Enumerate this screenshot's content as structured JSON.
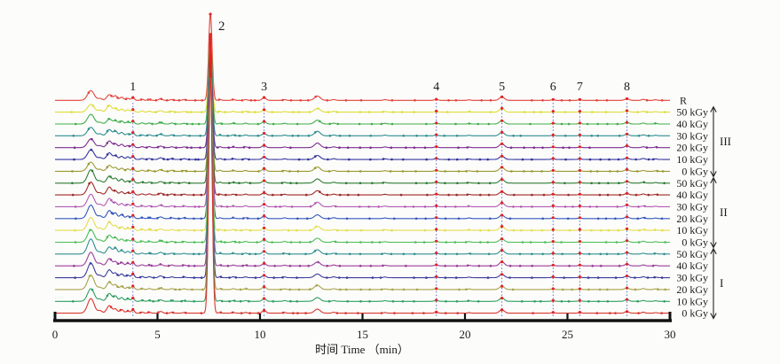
{
  "chart_data": {
    "type": "line",
    "kind": "stacked-chromatograms",
    "title": "",
    "xlabel": "时间 Time （min）",
    "ylabel": "",
    "xlim": [
      0,
      30
    ],
    "xticks": [
      0,
      5,
      10,
      15,
      20,
      25,
      30
    ],
    "grid": false,
    "legend_position": "right",
    "numbered_peaks": [
      {
        "label": "1",
        "x_min": 3.8
      },
      {
        "label": "2",
        "x_min": 7.58
      },
      {
        "label": "3",
        "x_min": 10.2
      },
      {
        "label": "4",
        "x_min": 18.6
      },
      {
        "label": "5",
        "x_min": 21.8
      },
      {
        "label": "6",
        "x_min": 24.3
      },
      {
        "label": "7",
        "x_min": 25.6
      },
      {
        "label": "8",
        "x_min": 27.9
      }
    ],
    "guide_lines_x_min": [
      3.8,
      10.2,
      18.6,
      21.8,
      24.3,
      25.6,
      27.9
    ],
    "unlabeled_features_x_min": [
      1.75,
      2.65,
      2.95,
      3.25,
      12.8
    ],
    "groups": [
      {
        "name": "III",
        "doses": [
          "50 kGy",
          "40 kGy",
          "30 kGy",
          "20 kGy",
          "10 kGy",
          "0 kGy"
        ]
      },
      {
        "name": "II",
        "doses": [
          "50 kGy",
          "40 kGy",
          "30 kGy",
          "20 kGy",
          "10 kGy",
          "0 kGy"
        ]
      },
      {
        "name": "I",
        "doses": [
          "50 kGy",
          "40 kGy",
          "30 kGy",
          "20 kGy",
          "10 kGy",
          "0 kGy"
        ]
      }
    ],
    "traces": [
      {
        "label": "R",
        "group": "reference",
        "color": "#e2433b"
      },
      {
        "label": "50 kGy",
        "group": "III",
        "color": "#dfdd3a"
      },
      {
        "label": "40 kGy",
        "group": "III",
        "color": "#3fae49"
      },
      {
        "label": "30 kGy",
        "group": "III",
        "color": "#2e8e8e"
      },
      {
        "label": "20 kGy",
        "group": "III",
        "color": "#7c2f90"
      },
      {
        "label": "10 kGy",
        "group": "III",
        "color": "#32329c"
      },
      {
        "label": "0 kGy",
        "group": "III",
        "color": "#9a9a30"
      },
      {
        "label": "50 kGy",
        "group": "II",
        "color": "#2e7d33"
      },
      {
        "label": "40 kGy",
        "group": "II",
        "color": "#9e2a26"
      },
      {
        "label": "30 kGy",
        "group": "II",
        "color": "#b35bb3"
      },
      {
        "label": "20 kGy",
        "group": "II",
        "color": "#3657b9"
      },
      {
        "label": "10 kGy",
        "group": "II",
        "color": "#e4dd4e"
      },
      {
        "label": "0 kGy",
        "group": "II",
        "color": "#4cbd55"
      },
      {
        "label": "50 kGy",
        "group": "I",
        "color": "#2e8f90"
      },
      {
        "label": "40 kGy",
        "group": "I",
        "color": "#993d99"
      },
      {
        "label": "30 kGy",
        "group": "I",
        "color": "#3c3c9b"
      },
      {
        "label": "20 kGy",
        "group": "I",
        "color": "#a7a249"
      },
      {
        "label": "10 kGy",
        "group": "I",
        "color": "#2f9e61"
      },
      {
        "label": "0 kGy",
        "group": "I",
        "color": "#d8372e"
      }
    ],
    "base_peaks": [
      [
        1.75,
        10.0,
        0.16
      ],
      [
        2.2,
        2.0,
        0.1
      ],
      [
        2.65,
        7.0,
        0.12
      ],
      [
        2.95,
        4.5,
        0.09
      ],
      [
        3.25,
        3.5,
        0.09
      ],
      [
        3.55,
        2.5,
        0.08
      ],
      [
        3.8,
        3.2,
        0.07
      ],
      [
        4.25,
        1.2,
        0.07
      ],
      [
        4.6,
        1.1,
        0.07
      ],
      [
        5.15,
        1.8,
        0.09
      ],
      [
        5.7,
        1.0,
        0.07
      ],
      [
        6.3,
        0.8,
        0.07
      ],
      [
        8.05,
        1.0,
        0.06
      ],
      [
        8.7,
        0.9,
        0.07
      ],
      [
        9.3,
        0.9,
        0.07
      ],
      [
        10.2,
        2.8,
        0.09
      ],
      [
        11.2,
        0.8,
        0.07
      ],
      [
        12.8,
        4.5,
        0.14
      ],
      [
        13.6,
        0.9,
        0.08
      ],
      [
        16.1,
        0.7,
        0.08
      ],
      [
        18.6,
        1.1,
        0.08
      ],
      [
        20.2,
        0.6,
        0.07
      ],
      [
        21.8,
        4.0,
        0.12
      ],
      [
        24.3,
        0.9,
        0.07
      ],
      [
        25.6,
        0.9,
        0.07
      ],
      [
        27.9,
        1.8,
        0.1
      ],
      [
        28.7,
        1.0,
        0.08
      ],
      [
        29.3,
        0.6,
        0.07
      ]
    ],
    "main_peak": {
      "x_min": 7.58,
      "sigma_min": 0.085
    },
    "marker_xs_min": [
      0.9,
      1.75,
      2.65,
      2.95,
      3.25,
      3.55,
      4.25,
      4.5,
      4.75,
      5.0,
      5.25,
      5.55,
      5.85,
      6.15,
      6.45,
      6.75,
      7.1,
      8.05,
      8.4,
      8.75,
      9.1,
      9.45,
      9.85,
      10.7,
      11.1,
      11.5,
      11.9,
      12.35,
      12.8,
      13.3,
      13.8,
      14.3,
      14.85,
      15.4,
      15.9,
      16.45,
      17.0,
      17.55,
      18.1,
      19.1,
      19.6,
      20.15,
      20.7,
      21.2,
      22.3,
      22.8,
      23.3,
      23.8,
      24.8,
      25.15,
      26.1,
      26.55,
      27.0,
      27.45,
      28.4,
      28.85,
      29.3,
      29.7
    ],
    "colors": {
      "guide_line": "#5b6cc9",
      "peak_marker": "#e02424",
      "axis": "#111111",
      "arrow": "#222222"
    }
  }
}
